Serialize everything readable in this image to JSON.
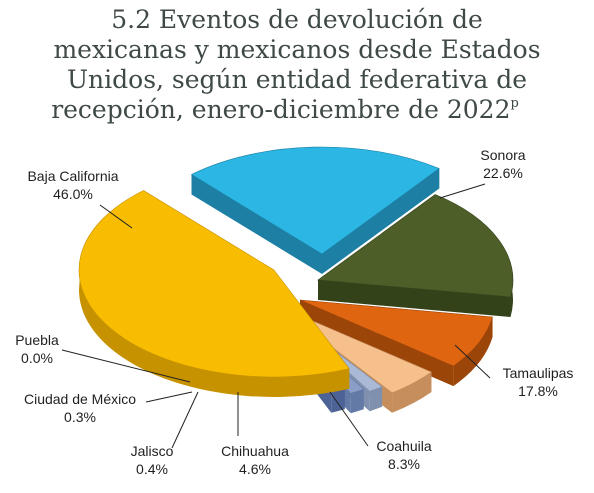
{
  "chart_data": {
    "type": "pie",
    "title_lines": [
      "5.2 Eventos de devolución de",
      "mexicanas y mexicanos desde Estados",
      "Unidos, según entidad federativa de",
      "recepción, enero-diciembre de 2022"
    ],
    "title_superscript": "p",
    "slices": [
      {
        "name": "Sonora",
        "value": 22.6,
        "label": "22.6%",
        "color": "#2bb6e4",
        "side": "#1c7fa3"
      },
      {
        "name": "Tamaulipas",
        "value": 17.8,
        "label": "17.8%",
        "color": "#4d5e28",
        "side": "#34421a"
      },
      {
        "name": "Coahuila",
        "value": 8.3,
        "label": "8.3%",
        "color": "#e06510",
        "side": "#9c4509"
      },
      {
        "name": "Chihuahua",
        "value": 4.6,
        "label": "4.6%",
        "color": "#f6c08d",
        "side": "#c58e5c"
      },
      {
        "name": "Jalisco",
        "value": 0.4,
        "label": "0.4%",
        "color": "#a9b9d6",
        "side": "#7f8fae"
      },
      {
        "name": "Ciudad de México",
        "value": 0.3,
        "label": "0.3%",
        "color": "#8a9fc8",
        "side": "#637aa6"
      },
      {
        "name": "Puebla",
        "value": 0.0,
        "label": "0.0%",
        "color": "#6b83b8",
        "side": "#4d6397"
      },
      {
        "name": "Baja California",
        "value": 46.0,
        "label": "46.0%",
        "color": "#f8bd00",
        "side": "#c79200"
      }
    ]
  }
}
